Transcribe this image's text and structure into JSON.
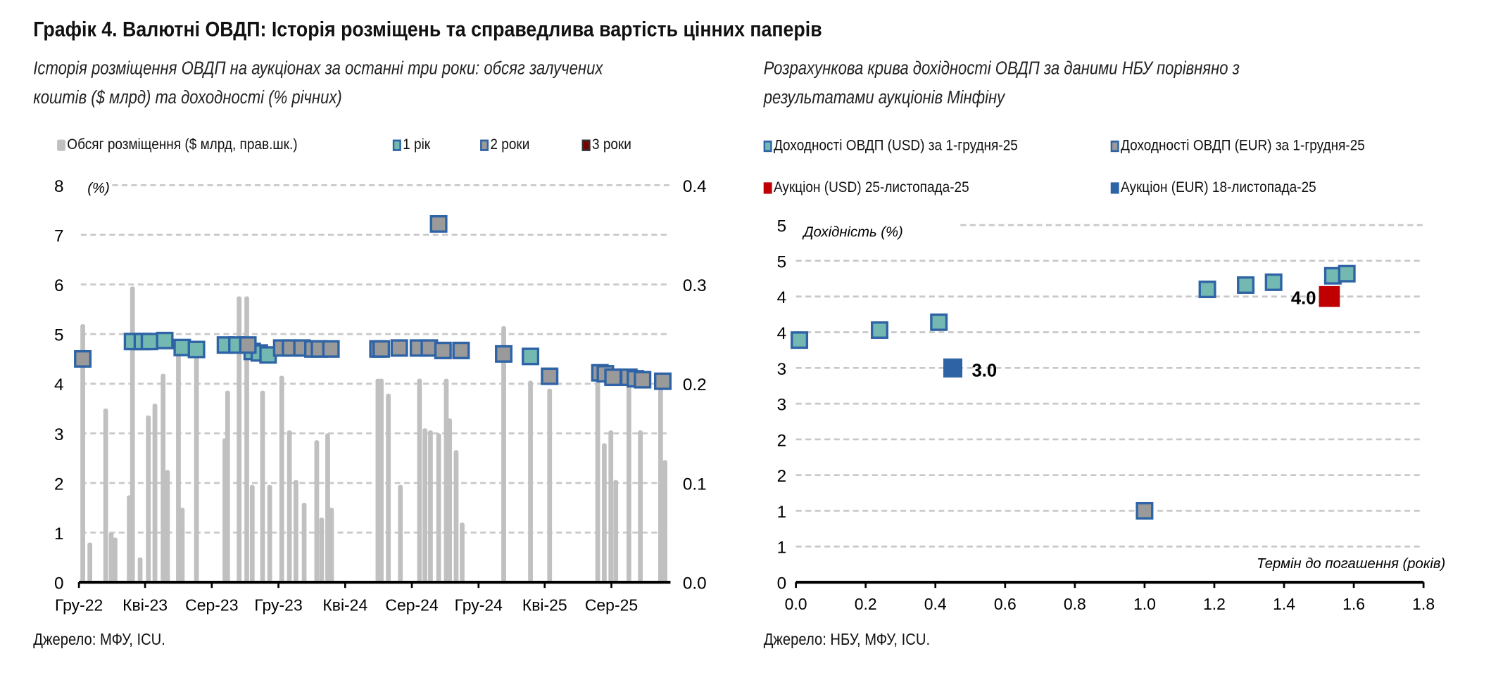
{
  "title": "Графік 4. Валютні ОВДП: Історія розміщень та справедлива вартість цінних паперів",
  "colors": {
    "teal": "#74b9b1",
    "grey_marker": "#9a9a9a",
    "blue_border": "#2e63a6",
    "bars": "#c0c0c0",
    "red": "#c00000",
    "dark_red": "#7a0000",
    "grid": "#c8c8c8"
  },
  "left": {
    "subtitle_line1": "Історія розміщення ОВДП на аукціонах за останні три роки: обсяг залучених",
    "subtitle_line2": "коштів ($ млрд) та доходності (% річних)",
    "legend": [
      "Обсяг розміщення ($ млрд, прав.шк.)",
      "1 рік",
      "2 роки",
      "3 роки"
    ],
    "source": "Джерело: МФУ, ICU."
  },
  "right": {
    "subtitle_line1": "Розрахункова крива дохідності ОВДП за даними НБУ порівняно з",
    "subtitle_line2": "результатами аукціонів Мінфіну",
    "legend": [
      "Доходності ОВДП (USD) за 1-грудня-25",
      "Доходності ОВДП (EUR) за 1-грудня-25",
      "Аукціон (USD) 25-листопада-25",
      "Аукціон (EUR) 18-листопада-25"
    ],
    "source": "Джерело: НБУ, МФУ, ICU."
  },
  "chart_data": [
    {
      "type": "bar+scatter",
      "ylabel": "(%)",
      "ylim": [
        0,
        8
      ],
      "y_ticks": [
        "0",
        "1",
        "2",
        "3",
        "4",
        "5",
        "6",
        "7",
        "8"
      ],
      "y2lim": [
        0,
        0.4
      ],
      "y2_ticks": [
        "0.0",
        "0.1",
        "0.2",
        "0.3",
        "0.4"
      ],
      "x_tick_labels": [
        "Гру-22",
        "Кві-23",
        "Сер-23",
        "Гру-23",
        "Кві-24",
        "Сер-24",
        "Гру-24",
        "Кві-25",
        "Сер-25"
      ],
      "x_tick_dates": [
        "2022-12-01",
        "2023-04-01",
        "2023-08-01",
        "2023-12-01",
        "2024-04-01",
        "2024-08-01",
        "2024-12-01",
        "2025-04-01",
        "2025-08-01"
      ],
      "xlim": [
        "2022-12-01",
        "2025-12-01"
      ],
      "grid": true,
      "bars": {
        "name": "Обсяг розміщення ($ млрд, прав.шк.)",
        "axis": "right",
        "x": [
          "2022-12-08",
          "2022-12-21",
          "2023-01-19",
          "2023-01-29",
          "2023-02-05",
          "2023-03-03",
          "2023-03-09",
          "2023-03-23",
          "2023-04-07",
          "2023-04-19",
          "2023-05-04",
          "2023-05-12",
          "2023-06-01",
          "2023-06-08",
          "2023-07-04",
          "2023-08-25",
          "2023-08-30",
          "2023-09-20",
          "2023-10-04",
          "2023-10-14",
          "2023-11-02",
          "2023-11-15",
          "2023-12-07",
          "2023-12-21",
          "2024-01-02",
          "2024-01-17",
          "2024-02-09",
          "2024-02-18",
          "2024-02-29",
          "2024-03-07",
          "2024-05-31",
          "2024-06-06",
          "2024-06-19",
          "2024-07-11",
          "2024-08-15",
          "2024-08-25",
          "2024-09-04",
          "2024-09-19",
          "2024-10-03",
          "2024-10-09",
          "2024-10-21",
          "2024-11-01",
          "2025-01-16",
          "2025-03-06",
          "2025-04-10",
          "2025-07-07",
          "2025-07-19",
          "2025-07-31",
          "2025-08-09",
          "2025-09-02",
          "2025-09-23",
          "2025-10-30",
          "2025-11-07"
        ],
        "values": [
          0.26,
          0.04,
          0.175,
          0.05,
          0.045,
          0.0875,
          0.298,
          0.025,
          0.168,
          0.18,
          0.21,
          0.113,
          0.235,
          0.075,
          0.235,
          0.145,
          0.193,
          0.288,
          0.288,
          0.098,
          0.193,
          0.098,
          0.208,
          0.153,
          0.103,
          0.08,
          0.143,
          0.065,
          0.15,
          0.075,
          0.205,
          0.205,
          0.19,
          0.098,
          0.205,
          0.155,
          0.153,
          0.15,
          0.205,
          0.165,
          0.133,
          0.06,
          0.258,
          0.203,
          0.195,
          0.205,
          0.14,
          0.153,
          0.103,
          0.2,
          0.153,
          0.2,
          0.123
        ]
      },
      "series": [
        {
          "name": "1 рік",
          "axis": "left",
          "x": [
            "2023-03-09",
            "2023-03-27",
            "2023-04-09",
            "2023-05-07",
            "2023-06-08",
            "2023-07-04",
            "2023-08-26",
            "2023-09-16",
            "2023-10-14",
            "2023-10-27",
            "2023-11-12",
            "2025-03-06"
          ],
          "y": [
            4.85,
            4.85,
            4.85,
            4.87,
            4.73,
            4.69,
            4.78,
            4.78,
            4.65,
            4.62,
            4.58,
            4.55
          ]
        },
        {
          "name": "2 роки",
          "axis": "left",
          "x": [
            "2022-12-08",
            "2023-10-06",
            "2023-12-07",
            "2023-12-23",
            "2024-01-13",
            "2024-02-02",
            "2024-02-14",
            "2024-03-06",
            "2024-05-31",
            "2024-06-06",
            "2024-07-09",
            "2024-08-13",
            "2024-09-02",
            "2024-09-19",
            "2024-09-27",
            "2024-10-30",
            "2025-01-16",
            "2025-04-10",
            "2025-07-11",
            "2025-07-21",
            "2025-08-04",
            "2025-09-02",
            "2025-09-14",
            "2025-09-27",
            "2025-11-03"
          ],
          "y": [
            4.5,
            4.78,
            4.72,
            4.72,
            4.72,
            4.7,
            4.7,
            4.7,
            4.7,
            4.7,
            4.72,
            4.72,
            4.72,
            7.22,
            4.67,
            4.67,
            4.6,
            4.15,
            4.22,
            4.2,
            4.13,
            4.13,
            4.1,
            4.08,
            4.05
          ]
        },
        {
          "name": "3 роки",
          "axis": "left",
          "x": [],
          "y": []
        }
      ]
    },
    {
      "type": "scatter",
      "ylabel": "Дохідність (%)",
      "xlabel": "Термін до погашення (років)",
      "ylim": [
        0,
        5
      ],
      "y_ticks": [
        "0",
        "1",
        "1",
        "2",
        "2",
        "3",
        "3",
        "4",
        "4",
        "5",
        "5"
      ],
      "xlim": [
        0,
        1.8
      ],
      "x_ticks": [
        "0.0",
        "0.2",
        "0.4",
        "0.6",
        "0.8",
        "1.0",
        "1.2",
        "1.4",
        "1.6",
        "1.8"
      ],
      "grid": true,
      "series": [
        {
          "name": "Доходності ОВДП (USD) за 1-грудня-25",
          "x": [
            0.01,
            0.24,
            0.41,
            1.18,
            1.29,
            1.37,
            1.54,
            1.58
          ],
          "y": [
            3.39,
            3.53,
            3.64,
            4.1,
            4.16,
            4.2,
            4.29,
            4.32
          ]
        },
        {
          "name": "Доходності ОВДП (EUR) за 1-грудня-25",
          "x": [
            1.0
          ],
          "y": [
            1.0
          ]
        },
        {
          "name": "Аукціон (USD) 25-листопада-25",
          "x": [
            1.53
          ],
          "y": [
            4.0
          ],
          "data_label": "4.0"
        },
        {
          "name": "Аукціон (EUR) 18-листопада-25",
          "x": [
            0.45
          ],
          "y": [
            3.0
          ],
          "data_label": "3.0"
        }
      ]
    }
  ]
}
